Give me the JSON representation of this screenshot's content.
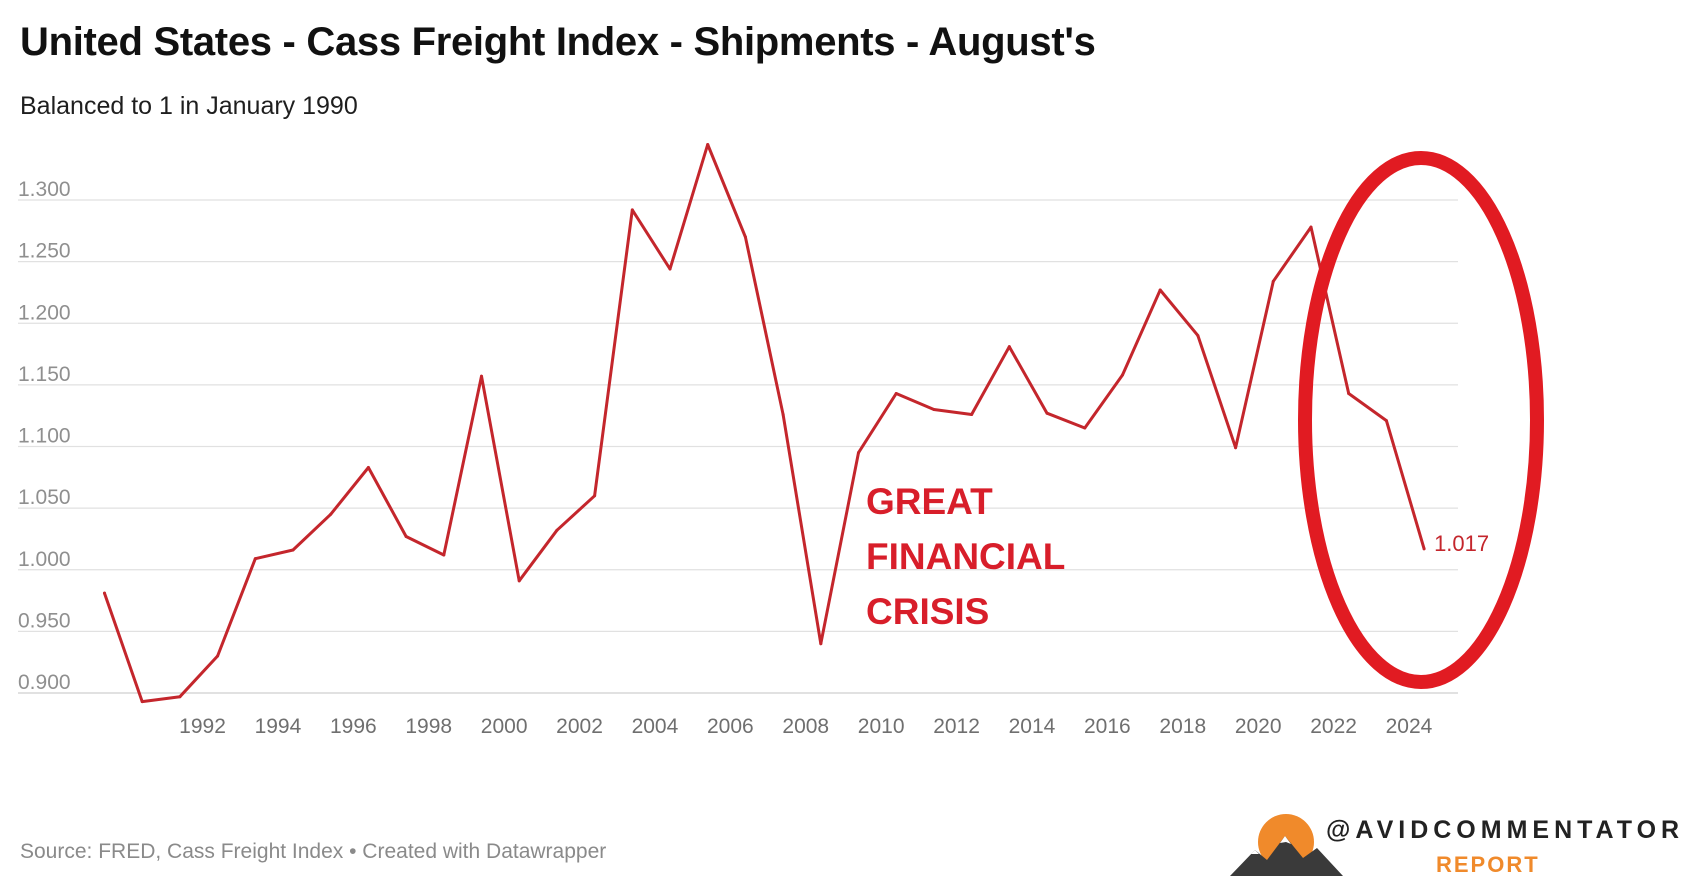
{
  "title": "United States - Cass Freight Index - Shipments - August's",
  "subtitle": "Balanced to 1 in January 1990",
  "source": "Source: FRED, Cass Freight Index • Created with Datawrapper",
  "annotation": {
    "lines": [
      "GREAT",
      "FINANCIAL",
      "CRISIS"
    ],
    "color": "#d81e2a"
  },
  "brand": {
    "name": "@AVIDCOMMENTATOR",
    "sub": "REPORT",
    "accent": "#f08a2b"
  },
  "colors": {
    "line": "#c4262c",
    "circle": "#e11b22",
    "grid": "#e1e1e1",
    "tick": "#8f8f8f"
  },
  "chart_data": {
    "type": "line",
    "title": "United States - Cass Freight Index - Shipments - August's",
    "subtitle": "Balanced to 1 in January 1990",
    "x": [
      1990,
      1991,
      1992,
      1993,
      1994,
      1995,
      1996,
      1997,
      1998,
      1999,
      2000,
      2001,
      2002,
      2003,
      2004,
      2005,
      2006,
      2007,
      2008,
      2009,
      2010,
      2011,
      2012,
      2013,
      2014,
      2015,
      2016,
      2017,
      2018,
      2019,
      2020,
      2021,
      2022,
      2023,
      2024,
      2025
    ],
    "values": [
      0.981,
      0.893,
      0.897,
      0.93,
      1.009,
      1.016,
      1.045,
      1.083,
      1.027,
      1.012,
      1.157,
      0.991,
      1.032,
      1.06,
      1.292,
      1.244,
      1.345,
      1.27,
      1.126,
      0.94,
      1.095,
      1.143,
      1.13,
      1.126,
      1.181,
      1.127,
      1.115,
      1.158,
      1.227,
      1.19,
      1.099,
      1.234,
      1.278,
      1.143,
      1.121,
      1.017
    ],
    "xticks": [
      "1992",
      "1994",
      "1996",
      "1998",
      "2000",
      "2002",
      "2004",
      "2006",
      "2008",
      "2010",
      "2012",
      "2014",
      "2016",
      "2018",
      "2020",
      "2022",
      "2024"
    ],
    "yticks": [
      "1.300",
      "1.250",
      "1.200",
      "1.150",
      "1.100",
      "1.050",
      "1.000",
      "0.950",
      "0.900"
    ],
    "ylim": [
      0.9,
      1.3
    ],
    "xlabel": "",
    "ylabel": "",
    "last_value_label": "1.017",
    "grid": true,
    "legend": "none"
  }
}
